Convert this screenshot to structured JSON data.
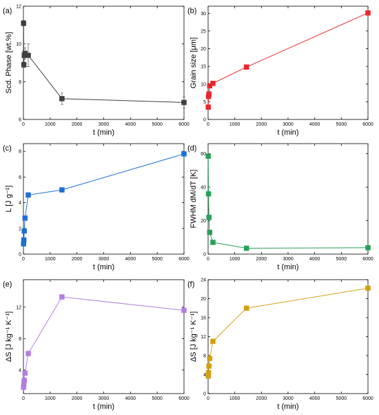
{
  "chart_data": [
    {
      "type": "line",
      "panel_label": "(a)",
      "title": "",
      "xlabel": "t (min)",
      "ylabel": "Scd. Phase [wt.%]",
      "xlim": [
        0,
        6000
      ],
      "ylim": [
        6,
        12
      ],
      "xticks": [
        0,
        1000,
        2000,
        3000,
        4000,
        5000,
        6000
      ],
      "yticks": [
        6,
        8,
        10,
        12
      ],
      "color": "#3f3f3f",
      "grid": false,
      "error_bars": true,
      "series": [
        {
          "x": [
            5,
            15,
            30,
            60,
            180,
            1440,
            6000
          ],
          "y": [
            11.1,
            8.9,
            9.4,
            9.5,
            9.4,
            7.1,
            6.9
          ],
          "err": [
            0.15,
            0.15,
            0.2,
            0.3,
            0.6,
            0.3,
            0.3
          ]
        }
      ]
    },
    {
      "type": "line",
      "panel_label": "(b)",
      "title": "",
      "xlabel": "t (min)",
      "ylabel": "Grain size [μm]",
      "xlim": [
        0,
        6000
      ],
      "ylim": [
        0,
        32
      ],
      "xticks": [
        0,
        1000,
        2000,
        3000,
        4000,
        5000,
        6000
      ],
      "yticks": [
        0,
        5,
        10,
        15,
        20,
        25,
        30
      ],
      "color": "#e8282c",
      "grid": false,
      "series": [
        {
          "x": [
            5,
            15,
            30,
            60,
            180,
            1440,
            6000
          ],
          "y": [
            3.5,
            6.5,
            7.2,
            9.5,
            10.2,
            14.8,
            30.1
          ]
        }
      ]
    },
    {
      "type": "line",
      "panel_label": "(c)",
      "title": "",
      "xlabel": "t (min)",
      "ylabel": "L [J g⁻¹]",
      "xlim": [
        0,
        6000
      ],
      "ylim": [
        0,
        8.6
      ],
      "xticks": [
        0,
        1000,
        2000,
        3000,
        4000,
        5000,
        6000
      ],
      "yticks": [
        0,
        2,
        4,
        6,
        8
      ],
      "color": "#1f6fd4",
      "grid": false,
      "series": [
        {
          "x": [
            5,
            15,
            30,
            60,
            180,
            1440,
            6000
          ],
          "y": [
            0.8,
            1.1,
            1.8,
            2.8,
            4.6,
            5.0,
            7.8
          ]
        }
      ]
    },
    {
      "type": "line",
      "panel_label": "(d)",
      "title": "",
      "xlabel": "t (min)",
      "ylabel": "FWHM dM/dT [K]",
      "xlim": [
        0,
        6000
      ],
      "ylim": [
        0,
        66
      ],
      "xticks": [
        0,
        1000,
        2000,
        3000,
        4000,
        5000,
        6000
      ],
      "yticks": [
        0,
        20,
        40,
        60
      ],
      "color": "#27a05a",
      "grid": false,
      "series": [
        {
          "x": [
            5,
            15,
            30,
            60,
            180,
            1440,
            6000
          ],
          "y": [
            58.5,
            36.0,
            22.0,
            13.0,
            7.0,
            3.5,
            3.8
          ]
        }
      ]
    },
    {
      "type": "line",
      "panel_label": "(e)",
      "title": "",
      "xlabel": "t (min)",
      "ylabel": "ΔS [J kg⁻¹ K⁻¹]",
      "xlim": [
        0,
        6000
      ],
      "ylim": [
        1,
        15.5
      ],
      "xticks": [
        0,
        1000,
        2000,
        3000,
        4000,
        5000,
        6000
      ],
      "yticks": [
        4,
        8,
        12
      ],
      "color": "#b47ee0",
      "grid": false,
      "series": [
        {
          "x": [
            5,
            15,
            30,
            60,
            180,
            1440,
            6000
          ],
          "y": [
            1.8,
            2.3,
            2.7,
            3.6,
            6.1,
            13.3,
            11.6
          ]
        }
      ]
    },
    {
      "type": "line",
      "panel_label": "(f)",
      "title": "",
      "xlabel": "t (min)",
      "ylabel": "ΔS [J kg⁻¹ K⁻¹]",
      "xlim": [
        0,
        6000
      ],
      "ylim": [
        0,
        24
      ],
      "xticks": [
        0,
        1000,
        2000,
        3000,
        4000,
        5000,
        6000
      ],
      "yticks": [
        0,
        4,
        8,
        12,
        16,
        20,
        24
      ],
      "color": "#d4a010",
      "grid": false,
      "series": [
        {
          "x": [
            5,
            15,
            30,
            60,
            180,
            1440,
            6000
          ],
          "y": [
            3.7,
            4.4,
            5.8,
            7.4,
            11.0,
            18.0,
            22.2
          ]
        }
      ]
    }
  ]
}
